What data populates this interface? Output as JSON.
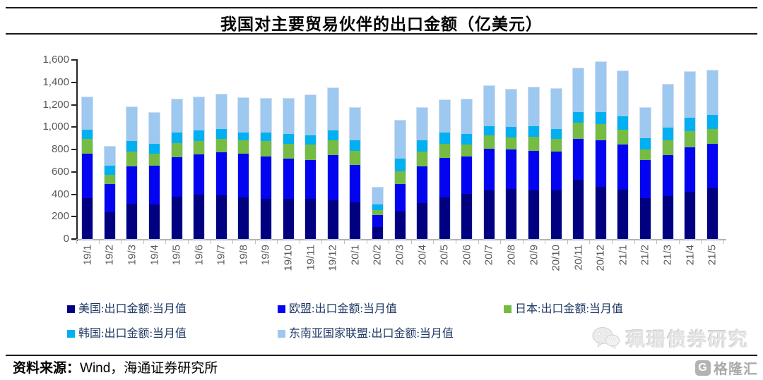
{
  "title": "我国对主要贸易伙伴的出口金额（亿美元）",
  "source_note": {
    "prefix": "资料来源：",
    "text": "Wind，海通证券研究所"
  },
  "watermark": {
    "wechat_icon": "wechat-bubbles-icon",
    "wechat_name": "珮珊债券研究",
    "logo_icon": "gelonghui-g-icon",
    "logo_badge": "G",
    "logo_text": "格隆汇"
  },
  "colors": {
    "us": "#000080",
    "eu": "#0404f0",
    "japan": "#76bc43",
    "korea": "#00b0f0",
    "asean": "#9dc8f0",
    "axis_dark": "#262626",
    "axis_light": "#b3b3b3",
    "tick_label": "#595959",
    "legend_text": "#1f3864"
  },
  "y_axis": {
    "tick_labels": [
      "0",
      "200",
      "400",
      "600",
      "800",
      "1,000",
      "1,200",
      "1,400",
      "1,600"
    ],
    "tick_values": [
      0,
      200,
      400,
      600,
      800,
      1000,
      1200,
      1400,
      1600
    ]
  },
  "chart_data": {
    "type": "bar",
    "stacked": true,
    "title": "我国对主要贸易伙伴的出口金额（亿美元）",
    "xlabel": "",
    "ylabel": "",
    "ylim": [
      0,
      1600
    ],
    "grid": false,
    "legend_position": "bottom",
    "categories": [
      "19/1",
      "19/2",
      "19/3",
      "19/4",
      "19/5",
      "19/6",
      "19/7",
      "19/8",
      "19/9",
      "19/10",
      "19/11",
      "19/12",
      "20/1",
      "20/2",
      "20/3",
      "20/4",
      "20/5",
      "20/6",
      "20/7",
      "20/8",
      "20/9",
      "20/10",
      "20/11",
      "20/12",
      "21/1",
      "21/2",
      "21/3",
      "21/4",
      "21/5"
    ],
    "series": [
      {
        "name": "美国:出口金额:当月值",
        "color": "#000080",
        "values": [
          364,
          238,
          316,
          307,
          379,
          396,
          392,
          375,
          360,
          358,
          358,
          348,
          326,
          107,
          248,
          322,
          375,
          402,
          434,
          449,
          438,
          438,
          527,
          465,
          442,
          364,
          386,
          421,
          453
        ]
      },
      {
        "name": "欧盟:出口金额:当月值",
        "color": "#0404f0",
        "values": [
          401,
          253,
          332,
          346,
          354,
          358,
          383,
          387,
          380,
          358,
          347,
          400,
          338,
          110,
          242,
          326,
          352,
          335,
          373,
          351,
          348,
          341,
          370,
          420,
          401,
          341,
          364,
          401,
          396
        ]
      },
      {
        "name": "日本:出口金额:当月值",
        "color": "#76bc43",
        "values": [
          130,
          85,
          131,
          109,
          126,
          120,
          122,
          118,
          134,
          137,
          137,
          132,
          126,
          42,
          117,
          131,
          126,
          105,
          120,
          106,
          130,
          118,
          141,
          143,
          137,
          95,
          131,
          143,
          137
        ]
      },
      {
        "name": "韩国:出口金额:当月值",
        "color": "#00b0f0",
        "values": [
          80,
          78,
          95,
          91,
          91,
          95,
          89,
          74,
          80,
          84,
          85,
          93,
          95,
          48,
          109,
          106,
          101,
          97,
          84,
          97,
          95,
          89,
          95,
          110,
          115,
          101,
          116,
          122,
          126
        ]
      },
      {
        "name": "东南亚国家联盟:出口金额:当月值",
        "color": "#9dc8f0",
        "values": [
          295,
          175,
          306,
          274,
          299,
          297,
          310,
          306,
          302,
          316,
          358,
          375,
          291,
          156,
          344,
          291,
          289,
          308,
          358,
          337,
          343,
          358,
          396,
          442,
          407,
          270,
          386,
          408,
          396
        ]
      }
    ]
  }
}
